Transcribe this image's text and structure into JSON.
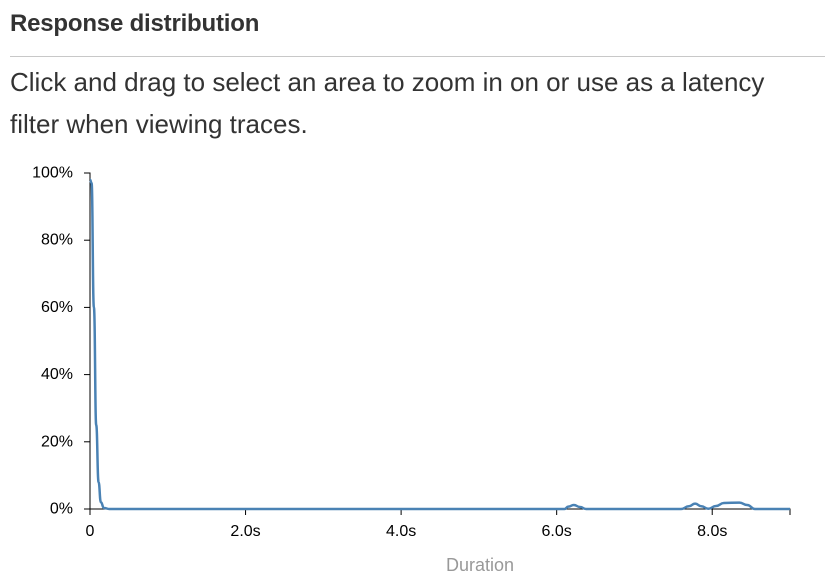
{
  "header": {
    "title": "Response distribution",
    "description": "Click and drag to select an area to zoom in on or use as a latency filter when viewing traces."
  },
  "colors": {
    "line": "#4a82b4",
    "axis": "#000000",
    "axis_label": "#999999"
  },
  "chart_data": {
    "type": "line",
    "title": "",
    "xlabel": "Duration",
    "ylabel": "",
    "xlim": [
      0,
      9.0
    ],
    "ylim": [
      0,
      100
    ],
    "x_ticks": [
      {
        "value": 0,
        "label": "0"
      },
      {
        "value": 2.0,
        "label": "2.0s"
      },
      {
        "value": 4.0,
        "label": "4.0s"
      },
      {
        "value": 6.0,
        "label": "6.0s"
      },
      {
        "value": 8.0,
        "label": "8.0s"
      }
    ],
    "y_ticks": [
      {
        "value": 0,
        "label": "0%"
      },
      {
        "value": 20,
        "label": "20%"
      },
      {
        "value": 40,
        "label": "40%"
      },
      {
        "value": 60,
        "label": "60%"
      },
      {
        "value": 80,
        "label": "80%"
      },
      {
        "value": 100,
        "label": "100%"
      }
    ],
    "grid": false,
    "series": [
      {
        "values": [
          [
            0.0,
            98.0
          ],
          [
            0.02,
            97.0
          ],
          [
            0.05,
            60.0
          ],
          [
            0.08,
            25.0
          ],
          [
            0.11,
            8.0
          ],
          [
            0.14,
            2.0
          ],
          [
            0.18,
            0.3
          ],
          [
            0.25,
            0.0
          ],
          [
            1.0,
            0.0
          ],
          [
            3.0,
            0.0
          ],
          [
            6.1,
            0.0
          ],
          [
            6.15,
            0.7
          ],
          [
            6.22,
            1.2
          ],
          [
            6.3,
            0.6
          ],
          [
            6.38,
            0.0
          ],
          [
            7.6,
            0.0
          ],
          [
            7.7,
            0.8
          ],
          [
            7.78,
            1.6
          ],
          [
            7.86,
            0.8
          ],
          [
            7.95,
            0.1
          ],
          [
            8.05,
            0.9
          ],
          [
            8.15,
            1.8
          ],
          [
            8.35,
            1.9
          ],
          [
            8.45,
            1.2
          ],
          [
            8.55,
            0.0
          ],
          [
            9.0,
            0.0
          ]
        ]
      }
    ]
  }
}
